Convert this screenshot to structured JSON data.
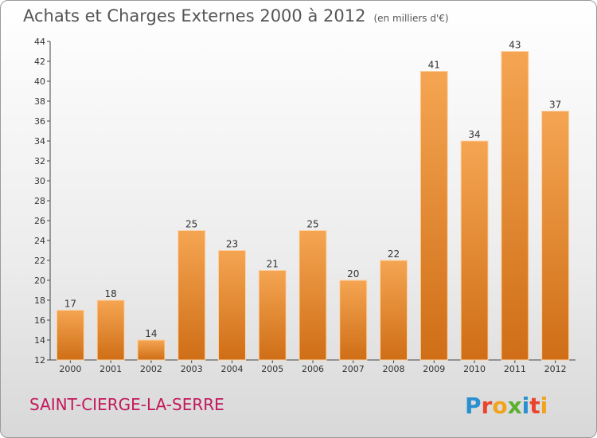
{
  "header": {
    "title": "Achats et Charges Externes 2000 à 2012",
    "subtitle": "(en milliers d'€)"
  },
  "footer": {
    "town": "SAINT-CIERGE-LA-SERRE",
    "logo_text": "Proxiti"
  },
  "colors": {
    "bar_top": "#f5a552",
    "bar_bottom": "#cf6e16",
    "town_text": "#c2185b"
  },
  "chart_data": {
    "type": "bar",
    "title": "Achats et Charges Externes 2000 à 2012",
    "subtitle": "(en milliers d'€)",
    "categories": [
      "2000",
      "2001",
      "2002",
      "2003",
      "2004",
      "2005",
      "2006",
      "2007",
      "2008",
      "2009",
      "2010",
      "2011",
      "2012"
    ],
    "values": [
      17,
      18,
      14,
      25,
      23,
      21,
      25,
      20,
      22,
      41,
      34,
      43,
      37
    ],
    "ylim": [
      12,
      44
    ],
    "yticks": [
      12,
      14,
      16,
      18,
      20,
      22,
      24,
      26,
      28,
      30,
      32,
      34,
      36,
      38,
      40,
      42,
      44
    ],
    "grid": false,
    "legend": "none"
  }
}
